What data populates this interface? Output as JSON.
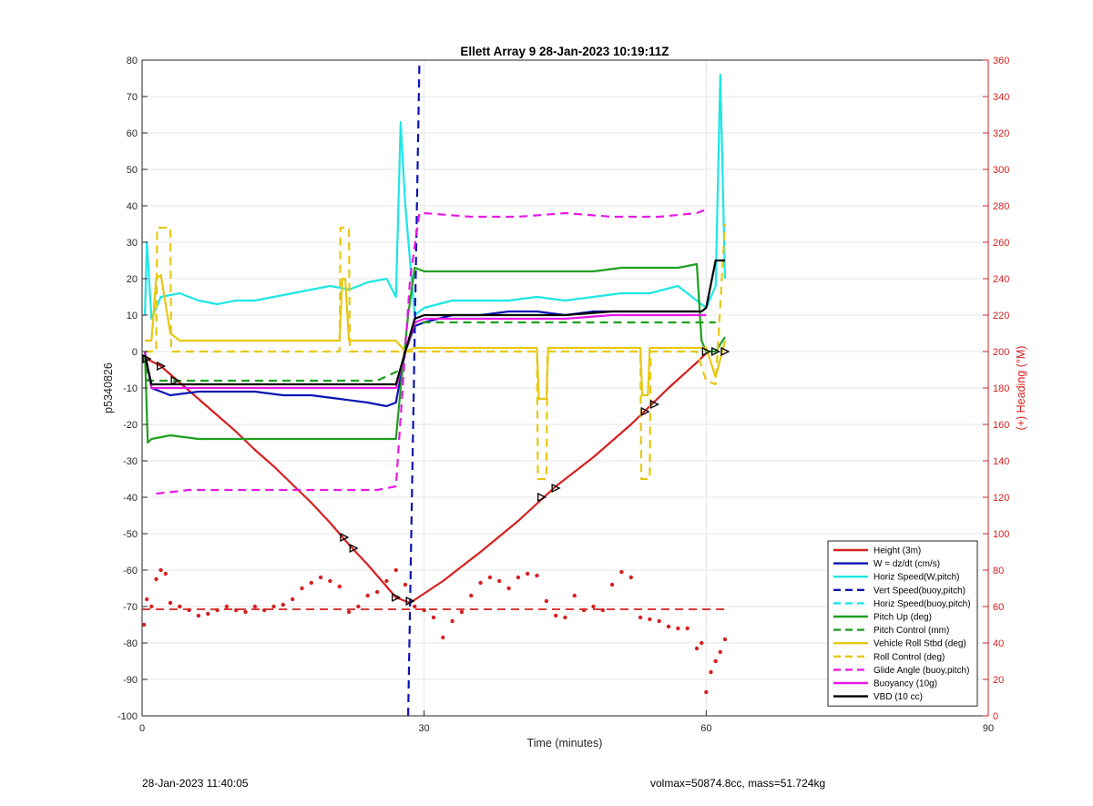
{
  "chart_data": {
    "type": "line",
    "title": "Ellett Array 9 28-Jan-2023 10:19:11Z",
    "xlabel": "Time (minutes)",
    "ylabel": "p5340826",
    "y2label": "(+) Heading (°M)",
    "xlim": [
      0,
      90
    ],
    "ylim": [
      -100,
      80
    ],
    "y2lim": [
      0,
      360
    ],
    "xticks": [
      0,
      30,
      60,
      90
    ],
    "yticks": [
      -100,
      -90,
      -80,
      -70,
      -60,
      -50,
      -40,
      -30,
      -20,
      -10,
      0,
      10,
      20,
      30,
      40,
      50,
      60,
      70,
      80
    ],
    "y2ticks": [
      0,
      20,
      40,
      60,
      80,
      100,
      120,
      140,
      160,
      180,
      200,
      220,
      240,
      260,
      280,
      300,
      320,
      340,
      360
    ],
    "grid": true,
    "legend_position": "bottom-right",
    "series": [
      {
        "name": "Height (3m)",
        "color": "#d62020",
        "dash": "solid",
        "x": [
          0.5,
          2,
          4,
          6,
          8,
          10,
          12,
          14,
          16,
          18,
          20,
          22,
          24,
          26,
          27,
          28,
          28.5,
          32,
          36,
          40,
          44,
          48,
          52,
          56,
          59,
          60
        ],
        "y": [
          -2,
          -4,
          -8.5,
          -13,
          -17.5,
          -22,
          -27,
          -31.5,
          -36.5,
          -41.5,
          -47,
          -53,
          -58.5,
          -64.5,
          -67.5,
          -68.5,
          -69,
          -63,
          -55,
          -46.5,
          -37,
          -29,
          -20,
          -10,
          -3,
          -0.5
        ]
      },
      {
        "name": "W = dz/dt (cm/s)",
        "color": "#0a14b4",
        "dash": "solid",
        "x": [
          0.5,
          1,
          3,
          6,
          9,
          12,
          15,
          18,
          21,
          24,
          26,
          27,
          28,
          29,
          30,
          33,
          36,
          39,
          42,
          45,
          48,
          51,
          54,
          57,
          59
        ],
        "y": [
          -3,
          -10,
          -12,
          -11,
          -11,
          -11,
          -12,
          -12,
          -13,
          -14,
          -15,
          -14,
          0,
          7,
          8,
          10,
          10,
          11,
          11,
          10,
          11,
          11,
          11,
          11,
          11
        ]
      },
      {
        "name": "Horiz Speed(W,pitch)",
        "color": "#1ee6e6",
        "dash": "solid",
        "x": [
          0.3,
          0.5,
          1,
          2,
          4,
          6,
          8,
          10,
          12,
          14,
          16,
          18,
          20,
          22,
          24,
          26,
          27,
          27.5,
          28,
          29,
          30,
          33,
          36,
          39,
          42,
          45,
          48,
          51,
          54,
          57,
          59,
          60,
          61,
          61.5,
          62
        ],
        "y": [
          10,
          30,
          9,
          15,
          16,
          14,
          13,
          14,
          14,
          15,
          16,
          17,
          18,
          17,
          19,
          20,
          15,
          63,
          40,
          10,
          12,
          14,
          14,
          14,
          15,
          14,
          15,
          16,
          16,
          18,
          14,
          12,
          18,
          76,
          20
        ]
      },
      {
        "name": "Vert Speed(buoy,pitch)",
        "color": "#0a14b4",
        "dash": "dashed",
        "x": [
          28.3,
          29.5
        ],
        "y": [
          -100,
          80
        ]
      },
      {
        "name": "Horiz Speed(buoy,pitch)",
        "color": "#1ee6e6",
        "dash": "dashed",
        "x": [],
        "y": []
      },
      {
        "name": "Pitch Up (deg)",
        "color": "#1ea01e",
        "dash": "solid",
        "x": [
          0.3,
          0.6,
          1,
          3,
          6,
          9,
          12,
          15,
          18,
          21,
          24,
          27,
          27.5,
          28.3,
          29,
          30,
          33,
          36,
          39,
          42,
          45,
          48,
          51,
          54,
          57,
          59,
          59.5,
          60,
          61,
          62
        ],
        "y": [
          0,
          -25,
          -24,
          -23,
          -24,
          -24,
          -24,
          -24,
          -24,
          -24,
          -24,
          -24,
          -10,
          10,
          23,
          22,
          22,
          22,
          22,
          22,
          22,
          22,
          23,
          23,
          23,
          24,
          3,
          0,
          0,
          4
        ]
      },
      {
        "name": "Pitch Control (mm)",
        "color": "#1ea01e",
        "dash": "dashed",
        "x": [
          0.3,
          0.6,
          1,
          5,
          10,
          15,
          20,
          25,
          27.5,
          28,
          28.8,
          29,
          35,
          40,
          45,
          50,
          55,
          59,
          59.5,
          61
        ],
        "y": [
          0,
          -8,
          -8,
          -8,
          -8,
          -8,
          -8,
          -8,
          -5,
          0,
          6,
          8,
          8,
          8,
          8,
          8,
          8,
          8,
          8,
          8
        ]
      },
      {
        "name": "Vehicle Roll Stbd (deg)",
        "color": "#e6c814",
        "dash": "solid",
        "x": [
          0.3,
          1,
          1.5,
          2,
          3,
          4,
          6,
          9,
          12,
          15,
          18,
          21,
          21.3,
          21.6,
          22,
          22.3,
          24,
          27,
          28,
          29,
          32,
          35,
          38,
          42,
          42.2,
          42.5,
          43,
          43.2,
          46,
          50,
          52,
          53,
          53.2,
          53.8,
          54,
          56,
          59,
          60,
          61,
          62
        ],
        "y": [
          3,
          3,
          20,
          21,
          5,
          3,
          3,
          3,
          3,
          3,
          3,
          3,
          20,
          20,
          3,
          3,
          3,
          3,
          0,
          1,
          1,
          1,
          1,
          1,
          -13,
          -13,
          -13,
          1,
          1,
          1,
          1,
          1,
          -12,
          -12,
          1,
          1,
          1,
          1,
          -7,
          3
        ]
      },
      {
        "name": "Roll Control (deg)",
        "color": "#e6c814",
        "dash": "dashed",
        "x": [
          0.3,
          1.5,
          1.6,
          3,
          3.1,
          5,
          10,
          15,
          21,
          21.1,
          22,
          22.1,
          25,
          28,
          29,
          35,
          42,
          42.1,
          43,
          43.1,
          50,
          53,
          53.1,
          54,
          54.1,
          59,
          60,
          61,
          62
        ],
        "y": [
          0,
          0,
          34,
          34,
          0,
          0,
          0,
          0,
          0,
          34,
          34,
          0,
          0,
          0,
          0,
          0,
          0,
          -35,
          -35,
          0,
          0,
          0,
          -35,
          -35,
          0,
          0,
          -8,
          -9,
          35
        ]
      },
      {
        "name": "Glide Angle (buoy,pitch)",
        "color": "#e619e6",
        "dash": "dashed",
        "x": [
          1.5,
          5,
          10,
          15,
          20,
          25,
          27,
          28.5,
          29.5,
          30,
          35,
          40,
          45,
          50,
          55,
          59,
          60
        ],
        "y": [
          -39,
          -38,
          -38,
          -38,
          -38,
          -38,
          -37,
          20,
          38,
          38,
          37,
          37,
          38,
          37,
          37,
          38,
          39
        ]
      },
      {
        "name": "Buoyancy (10g)",
        "color": "#e619e6",
        "dash": "solid",
        "x": [
          0.3,
          1,
          5,
          10,
          15,
          20,
          25,
          27,
          28,
          29,
          30,
          35,
          40,
          45,
          50,
          55,
          59,
          60
        ],
        "y": [
          0,
          -10,
          -10,
          -10,
          -10,
          -10,
          -10,
          -10,
          0,
          8,
          9,
          9,
          9,
          9,
          10,
          10,
          10,
          10
        ]
      },
      {
        "name": "VBD (10 cc)",
        "color": "#000000",
        "dash": "solid",
        "x": [
          0.3,
          1,
          5,
          10,
          15,
          20,
          25,
          27,
          28,
          29,
          30,
          35,
          40,
          45,
          50,
          55,
          59,
          59.5,
          60,
          61,
          62
        ],
        "y": [
          -1,
          -9,
          -9,
          -9,
          -9,
          -9,
          -9,
          -9,
          0,
          9,
          10,
          10,
          10,
          10,
          11,
          11,
          11,
          11,
          12,
          25,
          25
        ]
      }
    ],
    "heading_scatter": {
      "name": "Heading",
      "axis": "right",
      "color": "#d62020",
      "x": [
        0.2,
        0.5,
        1,
        1.5,
        2,
        2.5,
        3,
        4,
        5,
        6,
        7,
        8,
        9,
        10,
        11,
        12,
        13,
        14,
        15,
        16,
        17,
        18,
        19,
        20,
        21,
        22,
        23,
        24,
        25,
        26,
        27,
        28,
        29,
        30,
        31,
        32,
        33,
        34,
        35,
        36,
        37,
        38,
        39,
        40,
        41,
        42,
        43,
        44,
        45,
        46,
        47,
        48,
        49,
        50,
        51,
        52,
        53,
        54,
        55,
        56,
        57,
        58,
        59,
        59.5,
        60,
        60.5,
        61,
        61.5,
        62
      ],
      "y": [
        50,
        64,
        60,
        75,
        80,
        78,
        62,
        60,
        58,
        55,
        56,
        58,
        60,
        58,
        57,
        60,
        58,
        60,
        61,
        64,
        70,
        73,
        76,
        74,
        71,
        57,
        60,
        66,
        68,
        74,
        80,
        72,
        60,
        58,
        54,
        43,
        52,
        57,
        66,
        73,
        76,
        74,
        70,
        76,
        78,
        77,
        63,
        55,
        54,
        66,
        58,
        60,
        58,
        72,
        79,
        76,
        54,
        53,
        52,
        49,
        48,
        48,
        37,
        40,
        13,
        24,
        30,
        35,
        42
      ]
    },
    "reference_lines": [
      {
        "axis": "right",
        "y": 58.5,
        "color": "#d62020",
        "dash": "dashed"
      }
    ]
  },
  "footer": {
    "left": "28-Jan-2023 11:40:05",
    "right": "volmax=50874.8cc, mass=51.724kg"
  }
}
